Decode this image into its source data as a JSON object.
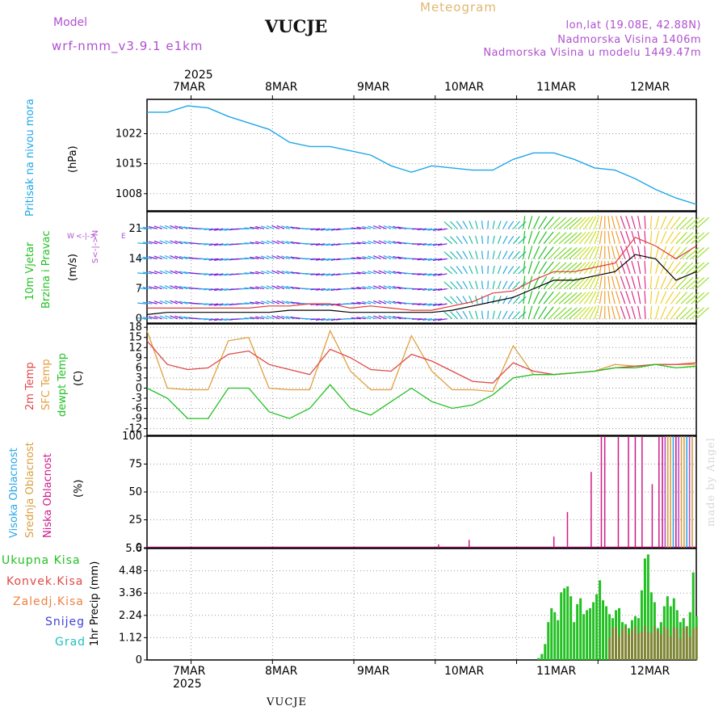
{
  "header": {
    "model_label": "Model",
    "model_name": "wrf-nmm_v3.9.1 e1km",
    "title": "VUCJE",
    "meteogram_label": "Meteogram",
    "lonlat": "lon,lat (19.08E, 42.88N)",
    "altitude": "Nadmorska Visina 1406m",
    "model_altitude": "Nadmorska Visina u modelu 1449.47m",
    "made_by": "made by Angel",
    "bottom_station": "VUCJE"
  },
  "time_axis": {
    "year": "2025",
    "days": [
      "7MAR",
      "8MAR",
      "9MAR",
      "10MAR",
      "11MAR",
      "12MAR"
    ]
  },
  "colors": {
    "pressure": "#1fa7e8",
    "wind_speed": "#000000",
    "wind_gust": "#e03a3a",
    "temp2m": "#e04848",
    "sfc_temp": "#e0a040",
    "dewpoint": "#22c022",
    "cloud_high": "#2aa6e8",
    "cloud_mid": "#d8a040",
    "cloud_low": "#d01a8a",
    "precip_total": "#22c022",
    "precip_conv": "#e04848",
    "precip_frozen": "#f08040",
    "snow": "#4040e0",
    "graupel": "#20c0c0"
  },
  "labels": {
    "pressure_title": "Pritisak na nivou mora",
    "pressure_unit": "(hPa)",
    "wind_title1": "10m Vjetar",
    "wind_title2": "Brzina i Pravac",
    "wind_unit": "(m/s)",
    "compass_n": "N",
    "compass_s": "S",
    "compass_e": "E",
    "compass_w": "W",
    "temp_2m": "2m Temp",
    "temp_sfc": "SFC Temp",
    "temp_dew": "dewpt Temp",
    "temp_unit": "(C)",
    "cloud_high": "Visoka Oblacnost",
    "cloud_mid": "Srednja Oblacnost",
    "cloud_low": "Niska Oblacnost",
    "cloud_unit": "(%)",
    "precip_total": "Ukupna Kisa",
    "precip_conv": "Konvek.Kisa",
    "precip_frozen": "Zaledj.Kisa",
    "precip_snow": "Snijeg",
    "precip_graupel": "Grad",
    "precip_unit": "1hr Precip (mm)"
  },
  "chart_data": [
    {
      "type": "line",
      "panel": "pressure",
      "ylabel": "(hPa)",
      "ylim": [
        1004,
        1030
      ],
      "yticks": [
        1008,
        1015,
        1022
      ],
      "x_hours": [
        0,
        6,
        12,
        18,
        24,
        30,
        36,
        42,
        48,
        54,
        60,
        66,
        72,
        78,
        84,
        90,
        96,
        102,
        108,
        114,
        120,
        126,
        132,
        138,
        144,
        150,
        156,
        162
      ],
      "series": [
        {
          "values": [
            1027,
            1027,
            1028.5,
            1028,
            1026,
            1024.5,
            1023,
            1020,
            1019,
            1019,
            1018,
            1017,
            1014.5,
            1013,
            1014.5,
            1014,
            1013.5,
            1013.5,
            1016,
            1017.5,
            1017.5,
            1016,
            1014,
            1013.5,
            1011.5,
            1009,
            1007,
            1005.5
          ]
        }
      ]
    },
    {
      "type": "line",
      "panel": "wind",
      "ylabel": "(m/s)",
      "ylim": [
        -1,
        25
      ],
      "yticks": [
        0,
        7,
        14,
        21
      ],
      "x_hours": [
        0,
        6,
        12,
        18,
        24,
        30,
        36,
        42,
        48,
        54,
        60,
        66,
        72,
        78,
        84,
        90,
        96,
        102,
        108,
        114,
        120,
        126,
        132,
        138,
        144,
        150,
        156,
        162
      ],
      "series": [
        {
          "values": [
            1,
            1.5,
            1.5,
            1.5,
            1.5,
            1.5,
            1.5,
            2,
            2,
            2,
            1.5,
            1.5,
            1.5,
            1.5,
            1.5,
            2,
            3,
            4,
            5,
            7,
            9,
            9,
            10,
            11,
            15,
            14,
            9,
            11
          ]
        },
        {
          "values": [
            2.5,
            2.5,
            2.5,
            2.5,
            2.5,
            2.5,
            3,
            3,
            3.5,
            3.5,
            2.5,
            3,
            2.5,
            2,
            2,
            3,
            4,
            6,
            6.5,
            9,
            11,
            11,
            12,
            13,
            19,
            17,
            14,
            17
          ]
        }
      ]
    },
    {
      "type": "line",
      "panel": "temperature",
      "ylabel": "(C)",
      "ylim": [
        -14,
        19
      ],
      "yticks": [
        -12,
        -9,
        -6,
        -3,
        0,
        3,
        6,
        9,
        12,
        15,
        18
      ],
      "x_hours": [
        0,
        6,
        12,
        18,
        24,
        30,
        36,
        42,
        48,
        54,
        60,
        66,
        72,
        78,
        84,
        90,
        96,
        102,
        108,
        114,
        120,
        126,
        132,
        138,
        144,
        150,
        156,
        162
      ],
      "series": [
        {
          "values": [
            14,
            7,
            5.5,
            6,
            10,
            11,
            7,
            5.5,
            4,
            11.5,
            9,
            5.5,
            5,
            10,
            8,
            5,
            2,
            1.5,
            7.5,
            5,
            4,
            4.5,
            5,
            6,
            6.5,
            7,
            7,
            7.5
          ]
        },
        {
          "values": [
            17,
            0,
            -0.5,
            -0.5,
            14,
            15,
            0,
            -0.5,
            -0.5,
            17,
            5,
            -0.5,
            -0.5,
            15.5,
            5,
            -0.5,
            -0.5,
            -1,
            12.5,
            4,
            4,
            4.5,
            5,
            7,
            6.5,
            7,
            7,
            7
          ]
        },
        {
          "values": [
            0,
            -3,
            -9,
            -9,
            0,
            0,
            -7,
            -9,
            -6,
            1,
            -6,
            -8,
            -4,
            0,
            -4,
            -6,
            -5,
            -2,
            3,
            4,
            4,
            4.5,
            5,
            6,
            6,
            7,
            6,
            6.5
          ]
        }
      ]
    },
    {
      "type": "bar",
      "panel": "clouds",
      "ylabel": "(%)",
      "ylim": [
        0,
        100
      ],
      "yticks": [
        0,
        25,
        50,
        75,
        100
      ]
    },
    {
      "type": "bar",
      "panel": "precipitation",
      "ylabel": "1hr Precip (mm)",
      "ylim": [
        0,
        5.6
      ],
      "yticks": [
        0,
        1.12,
        2.24,
        3.36,
        4.48,
        5.6
      ]
    }
  ]
}
